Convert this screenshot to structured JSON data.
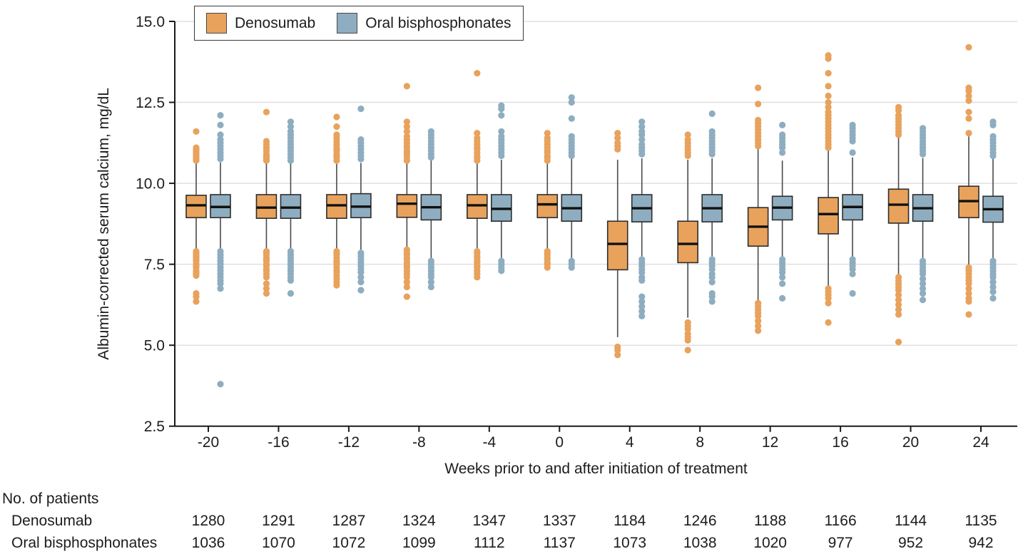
{
  "chart_data": {
    "type": "boxplot",
    "title": "",
    "xlabel": "Weeks prior to and after initiation of treatment",
    "ylabel": "Albumin-corrected serum calcium, mg/dL",
    "ylim": [
      2.5,
      15.0
    ],
    "yticks": [
      2.5,
      5.0,
      7.5,
      10.0,
      12.5,
      15.0
    ],
    "weeks": [
      -20,
      -16,
      -12,
      -8,
      -4,
      0,
      4,
      8,
      12,
      16,
      20,
      24
    ],
    "grid": "horizontal-light",
    "legend_position": "top-left",
    "series": [
      {
        "name": "Denosumab",
        "color": "#E8A25C",
        "boxes": [
          {
            "week": -20,
            "q1": 8.94,
            "median": 9.32,
            "q3": 9.63,
            "whisker_low": 7.95,
            "whisker_high": 10.64,
            "outliers_high": [
              10.7,
              10.75,
              10.8,
              10.85,
              10.9,
              10.95,
              11.0,
              11.05,
              11.1,
              11.6
            ],
            "outliers_low": [
              7.9,
              7.85,
              7.8,
              7.75,
              7.7,
              7.65,
              7.6,
              7.5,
              7.45,
              7.4,
              7.3,
              7.25,
              7.2,
              7.15,
              6.6,
              6.5,
              6.35
            ]
          },
          {
            "week": -16,
            "q1": 8.92,
            "median": 9.25,
            "q3": 9.65,
            "whisker_low": 7.95,
            "whisker_high": 10.63,
            "outliers_high": [
              10.7,
              10.75,
              10.8,
              10.85,
              10.9,
              11.0,
              11.1,
              11.2,
              11.3,
              12.2
            ],
            "outliers_low": [
              7.9,
              7.85,
              7.8,
              7.7,
              7.65,
              7.6,
              7.5,
              7.45,
              7.35,
              7.3,
              7.2,
              7.1,
              6.9,
              6.75,
              6.6
            ]
          },
          {
            "week": -12,
            "q1": 8.92,
            "median": 9.32,
            "q3": 9.65,
            "whisker_low": 7.97,
            "whisker_high": 10.6,
            "outliers_high": [
              10.7,
              10.8,
              10.85,
              10.9,
              11.0,
              11.05,
              11.1,
              11.2,
              11.3,
              11.4,
              11.5,
              11.75,
              12.05
            ],
            "outliers_low": [
              7.9,
              7.85,
              7.8,
              7.7,
              7.6,
              7.55,
              7.5,
              7.4,
              7.3,
              7.25,
              7.15,
              7.05,
              6.95,
              6.85
            ]
          },
          {
            "week": -8,
            "q1": 8.95,
            "median": 9.37,
            "q3": 9.65,
            "whisker_low": 8.0,
            "whisker_high": 10.63,
            "outliers_high": [
              10.7,
              10.8,
              10.9,
              10.95,
              11.0,
              11.1,
              11.15,
              11.25,
              11.35,
              11.45,
              11.6,
              11.75,
              11.9,
              13.0
            ],
            "outliers_low": [
              7.95,
              7.85,
              7.8,
              7.7,
              7.65,
              7.55,
              7.45,
              7.4,
              7.3,
              7.2,
              7.1,
              6.95,
              6.8,
              6.5
            ]
          },
          {
            "week": -4,
            "q1": 8.92,
            "median": 9.32,
            "q3": 9.65,
            "whisker_low": 8.0,
            "whisker_high": 10.63,
            "outliers_high": [
              10.7,
              10.8,
              10.85,
              10.95,
              11.05,
              11.1,
              11.2,
              11.3,
              11.4,
              11.55,
              13.4
            ],
            "outliers_low": [
              7.9,
              7.85,
              7.75,
              7.7,
              7.6,
              7.55,
              7.45,
              7.4,
              7.3,
              7.2,
              7.1
            ]
          },
          {
            "week": 0,
            "q1": 8.94,
            "median": 9.35,
            "q3": 9.65,
            "whisker_low": 8.0,
            "whisker_high": 10.63,
            "outliers_high": [
              10.7,
              10.8,
              10.85,
              10.95,
              11.0,
              11.1,
              11.2,
              11.3,
              11.4,
              11.55
            ],
            "outliers_low": [
              7.9,
              7.85,
              7.8,
              7.7,
              7.65,
              7.55,
              7.5,
              7.4
            ]
          },
          {
            "week": 4,
            "q1": 7.33,
            "median": 8.13,
            "q3": 8.83,
            "whisker_low": 5.25,
            "whisker_high": 10.73,
            "outliers_high": [
              11.05,
              11.15,
              11.25,
              11.4,
              11.55
            ],
            "outliers_low": [
              4.95,
              4.85,
              4.7
            ]
          },
          {
            "week": 8,
            "q1": 7.55,
            "median": 8.13,
            "q3": 8.83,
            "whisker_low": 5.85,
            "whisker_high": 10.73,
            "outliers_high": [
              10.85,
              10.95,
              11.05,
              11.15,
              11.25,
              11.35,
              11.5
            ],
            "outliers_low": [
              5.7,
              5.6,
              5.5,
              5.35,
              5.25,
              5.15,
              4.85
            ]
          },
          {
            "week": 12,
            "q1": 8.06,
            "median": 8.66,
            "q3": 9.25,
            "whisker_low": 6.35,
            "whisker_high": 11.05,
            "outliers_high": [
              11.15,
              11.25,
              11.35,
              11.45,
              11.55,
              11.65,
              11.75,
              11.85,
              11.95,
              12.45,
              12.95
            ],
            "outliers_low": [
              6.3,
              6.2,
              6.1,
              6.0,
              5.9,
              5.75,
              5.6,
              5.45
            ]
          },
          {
            "week": 16,
            "q1": 8.44,
            "median": 9.05,
            "q3": 9.56,
            "whisker_low": 6.8,
            "whisker_high": 11.05,
            "outliers_high": [
              11.1,
              11.2,
              11.3,
              11.4,
              11.5,
              11.6,
              11.7,
              11.8,
              11.9,
              12.0,
              12.1,
              12.2,
              12.35,
              12.5,
              12.7,
              13.0,
              13.4,
              13.85,
              13.95
            ],
            "outliers_low": [
              6.75,
              6.65,
              6.55,
              6.45,
              6.3,
              5.7
            ]
          },
          {
            "week": 20,
            "q1": 8.77,
            "median": 9.34,
            "q3": 9.82,
            "whisker_low": 7.15,
            "whisker_high": 11.4,
            "outliers_high": [
              11.5,
              11.6,
              11.7,
              11.8,
              11.9,
              12.0,
              12.1,
              12.25,
              12.35
            ],
            "outliers_low": [
              7.1,
              7.0,
              6.9,
              6.8,
              6.7,
              6.55,
              6.4,
              6.25,
              6.1,
              5.95,
              5.1
            ]
          },
          {
            "week": 24,
            "q1": 8.94,
            "median": 9.45,
            "q3": 9.91,
            "whisker_low": 7.45,
            "whisker_high": 11.45,
            "outliers_high": [
              11.55,
              12.0,
              12.2,
              12.55,
              12.7,
              12.85,
              12.95,
              14.2
            ],
            "outliers_low": [
              7.4,
              7.3,
              7.2,
              7.1,
              7.0,
              6.9,
              6.75,
              6.6,
              6.45,
              6.35,
              5.95
            ]
          }
        ]
      },
      {
        "name": "Oral bisphosphonates",
        "color": "#8EADC0",
        "boxes": [
          {
            "week": -20,
            "q1": 8.94,
            "median": 9.27,
            "q3": 9.65,
            "whisker_low": 7.95,
            "whisker_high": 10.64,
            "outliers_high": [
              10.75,
              10.85,
              10.95,
              11.05,
              11.15,
              11.25,
              11.35,
              11.5,
              11.8,
              12.1
            ],
            "outliers_low": [
              7.9,
              7.8,
              7.7,
              7.6,
              7.5,
              7.4,
              7.3,
              7.2,
              7.1,
              7.0,
              6.9,
              6.75,
              3.8
            ]
          },
          {
            "week": -16,
            "q1": 8.92,
            "median": 9.25,
            "q3": 9.65,
            "whisker_low": 7.95,
            "whisker_high": 10.63,
            "outliers_high": [
              10.7,
              10.8,
              10.9,
              11.0,
              11.1,
              11.2,
              11.3,
              11.4,
              11.5,
              11.6,
              11.75,
              11.9
            ],
            "outliers_low": [
              7.9,
              7.8,
              7.7,
              7.6,
              7.5,
              7.4,
              7.3,
              7.2,
              7.1,
              7.0,
              6.6
            ]
          },
          {
            "week": -12,
            "q1": 8.94,
            "median": 9.28,
            "q3": 9.68,
            "whisker_low": 7.95,
            "whisker_high": 10.63,
            "outliers_high": [
              10.75,
              10.85,
              10.95,
              11.05,
              11.15,
              11.25,
              11.35,
              12.3
            ],
            "outliers_low": [
              7.85,
              7.75,
              7.65,
              7.55,
              7.45,
              7.35,
              7.25,
              7.1,
              6.95,
              6.7
            ]
          },
          {
            "week": -8,
            "q1": 8.87,
            "median": 9.26,
            "q3": 9.65,
            "whisker_low": 7.66,
            "whisker_high": 10.78,
            "outliers_high": [
              10.8,
              10.9,
              11.0,
              11.1,
              11.2,
              11.3,
              11.4,
              11.5,
              11.6
            ],
            "outliers_low": [
              7.6,
              7.5,
              7.4,
              7.3,
              7.2,
              7.1,
              6.95,
              6.8
            ]
          },
          {
            "week": -4,
            "q1": 8.83,
            "median": 9.21,
            "q3": 9.65,
            "whisker_low": 7.7,
            "whisker_high": 10.73,
            "outliers_high": [
              10.85,
              10.95,
              11.05,
              11.15,
              11.25,
              11.35,
              11.45,
              11.6,
              12.1,
              12.3,
              12.4
            ],
            "outliers_low": [
              7.6,
              7.5,
              7.4,
              7.3
            ]
          },
          {
            "week": 0,
            "q1": 8.83,
            "median": 9.23,
            "q3": 9.65,
            "whisker_low": 7.7,
            "whisker_high": 10.75,
            "outliers_high": [
              10.85,
              10.95,
              11.05,
              11.15,
              11.25,
              11.35,
              11.45,
              12.0,
              12.5,
              12.65
            ],
            "outliers_low": [
              7.6,
              7.5,
              7.4
            ]
          },
          {
            "week": 4,
            "q1": 8.81,
            "median": 9.23,
            "q3": 9.65,
            "whisker_low": 7.75,
            "whisker_high": 10.77,
            "outliers_high": [
              10.9,
              11.0,
              11.1,
              11.2,
              11.35,
              11.5,
              11.6,
              11.75,
              11.9
            ],
            "outliers_low": [
              7.65,
              7.55,
              7.45,
              7.35,
              7.25,
              7.1,
              7.0,
              6.5,
              6.35,
              6.2,
              6.05,
              5.9
            ]
          },
          {
            "week": 8,
            "q1": 8.81,
            "median": 9.23,
            "q3": 9.65,
            "whisker_low": 7.75,
            "whisker_high": 10.77,
            "outliers_high": [
              10.9,
              11.0,
              11.1,
              11.2,
              11.3,
              11.4,
              11.5,
              11.6,
              12.15
            ],
            "outliers_low": [
              7.65,
              7.55,
              7.45,
              7.35,
              7.2,
              7.1,
              6.95,
              6.6,
              6.5,
              6.35
            ]
          },
          {
            "week": 12,
            "q1": 8.87,
            "median": 9.25,
            "q3": 9.6,
            "whisker_low": 7.73,
            "whisker_high": 10.7,
            "outliers_high": [
              10.95,
              11.1,
              11.2,
              11.3,
              11.4,
              11.5,
              11.8
            ],
            "outliers_low": [
              7.65,
              7.55,
              7.45,
              7.35,
              7.25,
              7.1,
              6.9,
              6.45
            ]
          },
          {
            "week": 16,
            "q1": 8.87,
            "median": 9.27,
            "q3": 9.65,
            "whisker_low": 7.73,
            "whisker_high": 10.8,
            "outliers_high": [
              10.95,
              11.3,
              11.4,
              11.5,
              11.6,
              11.7,
              11.8
            ],
            "outliers_low": [
              7.65,
              7.55,
              7.45,
              7.35,
              7.2,
              6.6
            ]
          },
          {
            "week": 20,
            "q1": 8.83,
            "median": 9.23,
            "q3": 9.65,
            "whisker_low": 7.7,
            "whisker_high": 10.78,
            "outliers_high": [
              10.9,
              11.0,
              11.1,
              11.2,
              11.3,
              11.4,
              11.5,
              11.6,
              11.7
            ],
            "outliers_low": [
              7.6,
              7.5,
              7.4,
              7.3,
              7.2,
              7.05,
              6.9,
              6.75,
              6.6,
              6.4
            ]
          },
          {
            "week": 24,
            "q1": 8.8,
            "median": 9.2,
            "q3": 9.6,
            "whisker_low": 7.65,
            "whisker_high": 10.75,
            "outliers_high": [
              10.85,
              10.95,
              11.05,
              11.15,
              11.25,
              11.35,
              11.45,
              11.8,
              11.9
            ],
            "outliers_low": [
              7.6,
              7.5,
              7.4,
              7.3,
              7.2,
              7.1,
              6.95,
              6.8,
              6.65,
              6.45
            ]
          }
        ]
      }
    ],
    "patients": {
      "header": "No. of patients",
      "rows": [
        {
          "label": "Denosumab",
          "counts": [
            1280,
            1291,
            1287,
            1324,
            1347,
            1337,
            1184,
            1246,
            1188,
            1166,
            1144,
            1135
          ]
        },
        {
          "label": "Oral bisphosphonates",
          "counts": [
            1036,
            1070,
            1072,
            1099,
            1112,
            1137,
            1073,
            1038,
            1020,
            977,
            952,
            942
          ]
        }
      ]
    },
    "style": {
      "grid_color": "#e0e0e0",
      "axis_color": "#1a1a1a",
      "box_border_color": "#2d2d2d",
      "median_color": "#111111",
      "whisker_color": "#4a4a4a"
    }
  }
}
